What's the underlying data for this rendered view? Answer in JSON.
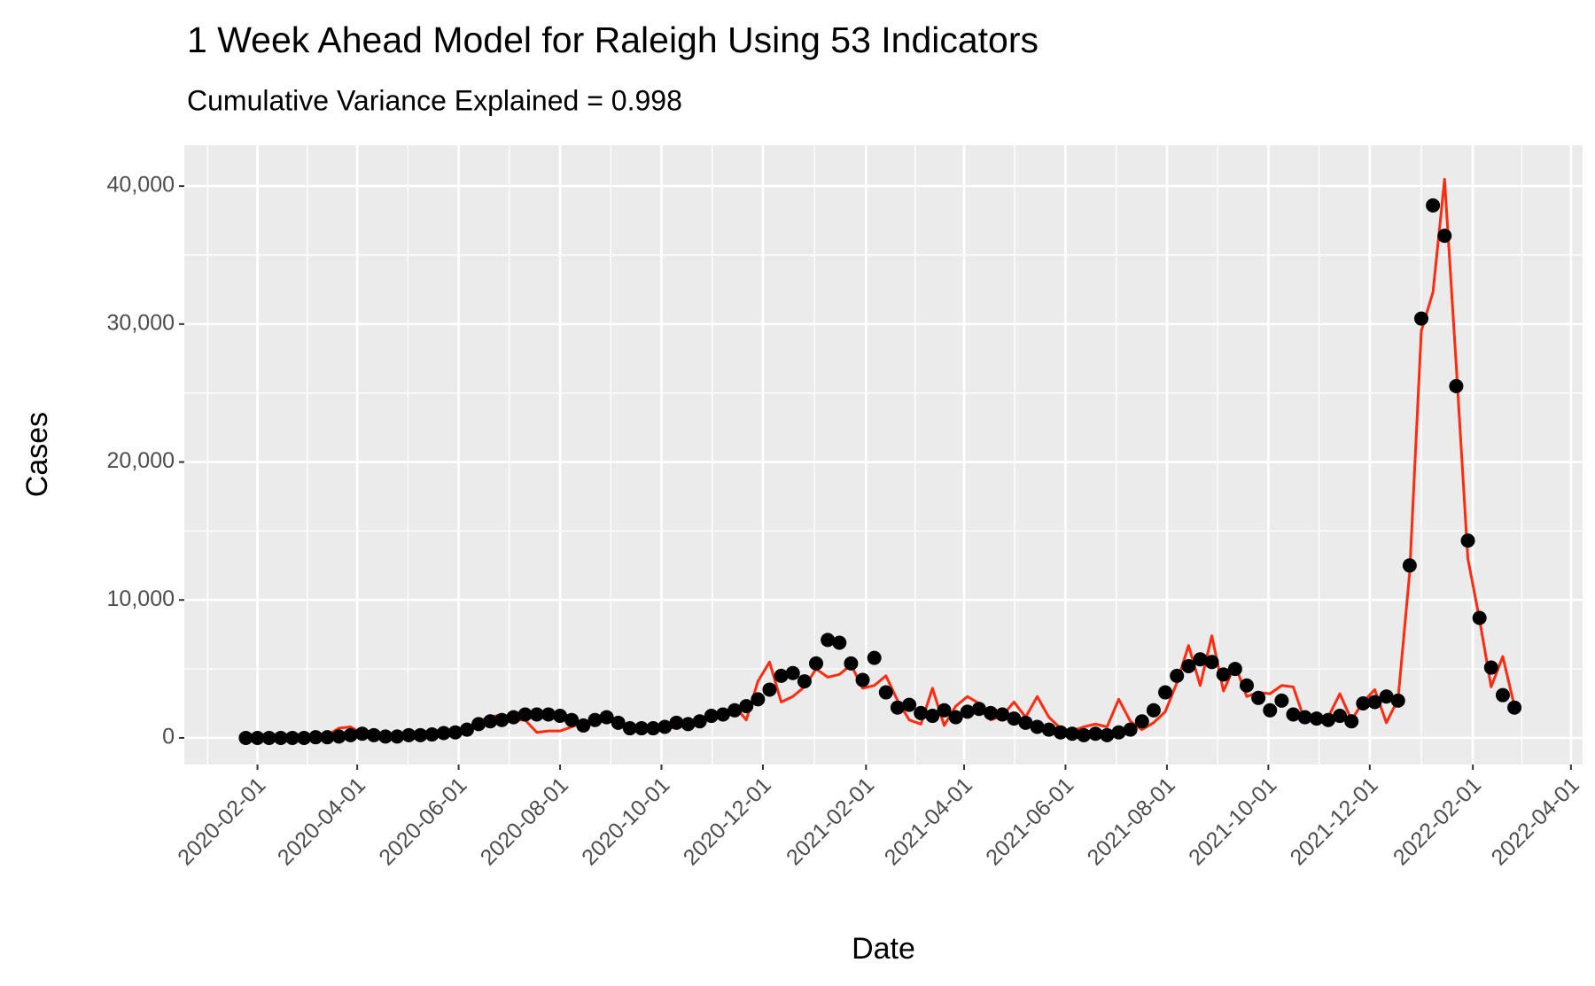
{
  "chart_data": {
    "type": "line",
    "title": "1 Week Ahead Model for Raleigh Using 53 Indicators",
    "subtitle": "Cumulative Variance Explained = 0.998",
    "x_label": "Date",
    "y_label": "Cases",
    "x": [
      "2020-01-25",
      "2020-02-01",
      "2020-02-08",
      "2020-02-15",
      "2020-02-22",
      "2020-02-29",
      "2020-03-07",
      "2020-03-14",
      "2020-03-21",
      "2020-03-28",
      "2020-04-04",
      "2020-04-11",
      "2020-04-18",
      "2020-04-25",
      "2020-05-02",
      "2020-05-09",
      "2020-05-16",
      "2020-05-23",
      "2020-05-30",
      "2020-06-06",
      "2020-06-13",
      "2020-06-20",
      "2020-06-27",
      "2020-07-04",
      "2020-07-11",
      "2020-07-18",
      "2020-07-25",
      "2020-08-01",
      "2020-08-08",
      "2020-08-15",
      "2020-08-22",
      "2020-08-29",
      "2020-09-05",
      "2020-09-12",
      "2020-09-19",
      "2020-09-26",
      "2020-10-03",
      "2020-10-10",
      "2020-10-17",
      "2020-10-24",
      "2020-10-31",
      "2020-11-07",
      "2020-11-14",
      "2020-11-21",
      "2020-11-28",
      "2020-12-05",
      "2020-12-12",
      "2020-12-19",
      "2020-12-26",
      "2021-01-02",
      "2021-01-09",
      "2021-01-16",
      "2021-01-23",
      "2021-01-30",
      "2021-02-06",
      "2021-02-13",
      "2021-02-20",
      "2021-02-27",
      "2021-03-06",
      "2021-03-13",
      "2021-03-20",
      "2021-03-27",
      "2021-04-03",
      "2021-04-10",
      "2021-04-17",
      "2021-04-24",
      "2021-05-01",
      "2021-05-08",
      "2021-05-15",
      "2021-05-22",
      "2021-05-29",
      "2021-06-05",
      "2021-06-12",
      "2021-06-19",
      "2021-06-26",
      "2021-07-03",
      "2021-07-10",
      "2021-07-17",
      "2021-07-24",
      "2021-07-31",
      "2021-08-07",
      "2021-08-14",
      "2021-08-21",
      "2021-08-28",
      "2021-09-04",
      "2021-09-11",
      "2021-09-18",
      "2021-09-25",
      "2021-10-02",
      "2021-10-09",
      "2021-10-16",
      "2021-10-23",
      "2021-10-30",
      "2021-11-06",
      "2021-11-13",
      "2021-11-20",
      "2021-11-27",
      "2021-12-04",
      "2021-12-11",
      "2021-12-18",
      "2021-12-25",
      "2022-01-01",
      "2022-01-08",
      "2022-01-15",
      "2022-01-22",
      "2022-01-29",
      "2022-02-05",
      "2022-02-12",
      "2022-02-19",
      "2022-02-26"
    ],
    "series": [
      {
        "color": "#ff2a0e",
        "mark": "line",
        "values": [
          0,
          0,
          0,
          0,
          0,
          0,
          100,
          200,
          700,
          800,
          300,
          100,
          100,
          200,
          200,
          200,
          300,
          300,
          500,
          700,
          1200,
          1500,
          1700,
          1300,
          1300,
          400,
          500,
          500,
          800,
          1100,
          1300,
          1300,
          1000,
          700,
          600,
          700,
          800,
          700,
          1200,
          1300,
          1500,
          1800,
          2300,
          1300,
          4100,
          5500,
          2600,
          3000,
          3700,
          5000,
          4400,
          4600,
          5300,
          3600,
          3800,
          4500,
          2700,
          1300,
          1000,
          3600,
          900,
          2300,
          3000,
          2500,
          1300,
          1600,
          2600,
          1500,
          3000,
          1500,
          700,
          500,
          800,
          1000,
          800,
          2800,
          1200,
          600,
          1100,
          1900,
          4000,
          6700,
          3800,
          7400,
          3400,
          5300,
          3000,
          3300,
          3200,
          3800,
          3700,
          1200,
          1500,
          1500,
          3200,
          1300,
          2600,
          3500,
          1100,
          2800,
          12000,
          29500,
          32300,
          40500,
          27000,
          13000,
          8600,
          3700,
          5900,
          2300
        ]
      },
      {
        "color": "#000000",
        "mark": "point",
        "values": [
          0,
          0,
          0,
          0,
          0,
          0,
          50,
          50,
          100,
          200,
          300,
          200,
          100,
          100,
          200,
          200,
          250,
          350,
          400,
          600,
          1000,
          1200,
          1300,
          1500,
          1700,
          1700,
          1700,
          1600,
          1300,
          900,
          1300,
          1500,
          1100,
          700,
          700,
          700,
          800,
          1100,
          1000,
          1200,
          1600,
          1700,
          2000,
          2300,
          2800,
          3500,
          4500,
          4700,
          4100,
          5400,
          7100,
          6900,
          5400,
          4200,
          5800,
          3300,
          2200,
          2400,
          1800,
          1600,
          2000,
          1500,
          1900,
          2100,
          1800,
          1700,
          1400,
          1100,
          800,
          600,
          400,
          300,
          200,
          300,
          200,
          400,
          600,
          1200,
          2000,
          3300,
          4500,
          5200,
          5700,
          5500,
          4600,
          5000,
          3800,
          2900,
          2000,
          2700,
          1700,
          1500,
          1400,
          1300,
          1600,
          1200,
          2500,
          2600,
          3000,
          2700,
          12500,
          30400,
          38600,
          36400,
          25500,
          14300,
          8700,
          5100,
          3100,
          2200
        ]
      }
    ],
    "xlim": [
      "2019-12-19",
      "2022-04-08"
    ],
    "xticks": [
      "2020-02-01",
      "2020-04-01",
      "2020-06-01",
      "2020-08-01",
      "2020-10-01",
      "2020-12-01",
      "2021-02-01",
      "2021-04-01",
      "2021-06-01",
      "2021-08-01",
      "2021-10-01",
      "2021-12-01",
      "2022-02-01",
      "2022-04-01"
    ],
    "ylim": [
      -1930,
      42960
    ],
    "yticks": [
      0,
      {
        "value": 10000,
        "label": "10,000"
      },
      {
        "value": 20000,
        "label": "20,000"
      },
      {
        "value": 30000,
        "label": "30,000"
      },
      {
        "value": 40000,
        "label": "40,000"
      }
    ],
    "grid": true,
    "panel_color": "#ebebeb"
  }
}
